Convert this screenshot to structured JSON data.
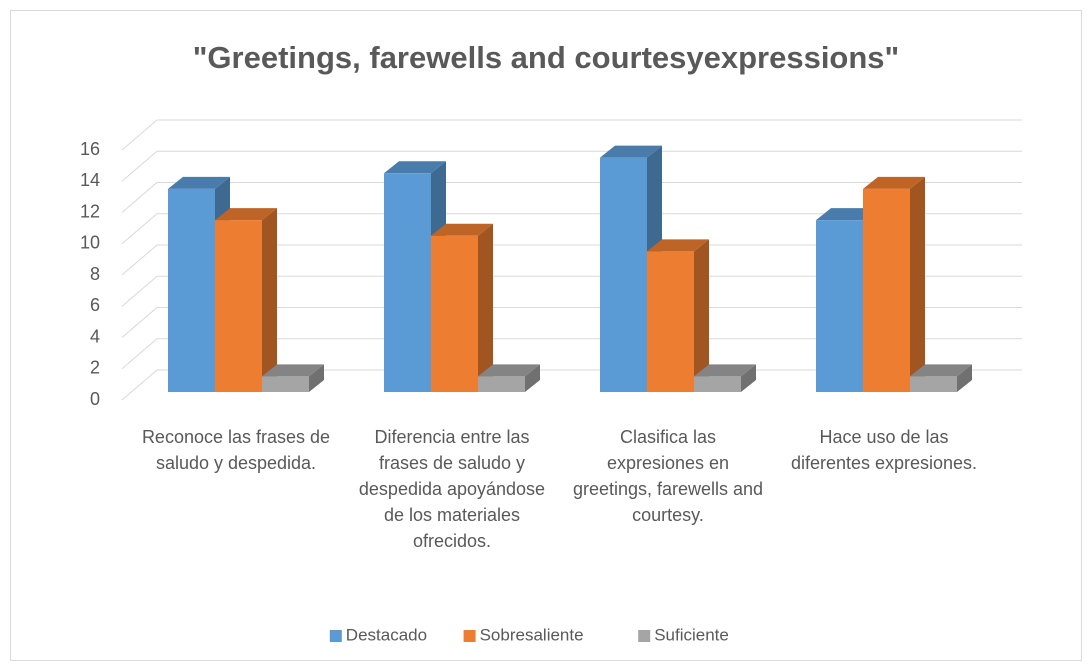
{
  "chart_data": {
    "type": "bar3d",
    "title": "\"Greetings, farewells and courtesyexpressions\"",
    "categories": [
      "Reconoce las frases de saludo y despedida.",
      "Diferencia entre las frases de saludo y despedida apoyándose de los materiales ofrecidos.",
      "Clasifica las expresiones en greetings, farewells and courtesy.",
      "Hace uso de las diferentes expresiones."
    ],
    "series": [
      {
        "name": "Destacado",
        "color": "#5b9bd5",
        "values": [
          13,
          14,
          15,
          11
        ]
      },
      {
        "name": "Sobresaliente",
        "color": "#ed7d31",
        "values": [
          11,
          10,
          9,
          13
        ]
      },
      {
        "name": "Suficiente",
        "color": "#a5a5a5",
        "values": [
          1,
          1,
          1,
          1
        ]
      }
    ],
    "ylim": [
      0,
      16
    ],
    "yticks": [
      0,
      2,
      4,
      6,
      8,
      10,
      12,
      14,
      16
    ],
    "grid": true,
    "legend": "bottom"
  }
}
